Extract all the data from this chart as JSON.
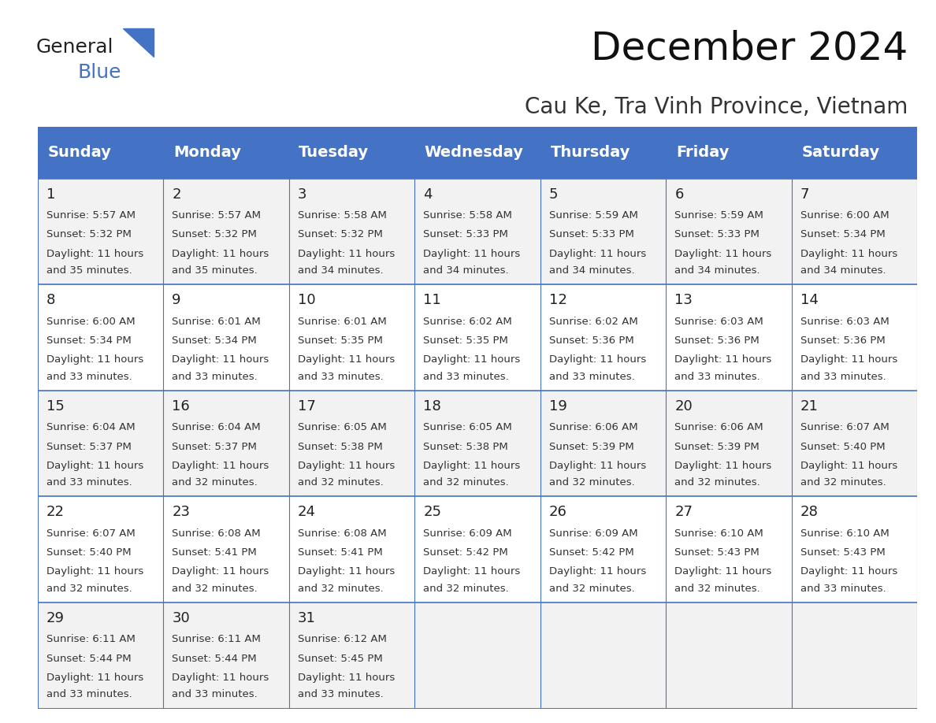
{
  "title": "December 2024",
  "subtitle": "Cau Ke, Tra Vinh Province, Vietnam",
  "header_color": "#4472C4",
  "header_text_color": "#FFFFFF",
  "day_names": [
    "Sunday",
    "Monday",
    "Tuesday",
    "Wednesday",
    "Thursday",
    "Friday",
    "Saturday"
  ],
  "cell_bg_even": "#F2F2F2",
  "cell_bg_odd": "#FFFFFF",
  "grid_color": "#4472C4",
  "title_fontsize": 36,
  "subtitle_fontsize": 20,
  "header_fontsize": 14,
  "cell_fontsize": 9.5,
  "day_num_fontsize": 13,
  "logo_text1": "General",
  "logo_text2": "Blue",
  "logo_color1": "#222222",
  "logo_color2": "#4472C4",
  "triangle_color": "#4472C4",
  "weeks": [
    [
      {
        "day": 1,
        "sunrise": "5:57 AM",
        "sunset": "5:32 PM",
        "daylight": "11 hours and 35 minutes."
      },
      {
        "day": 2,
        "sunrise": "5:57 AM",
        "sunset": "5:32 PM",
        "daylight": "11 hours and 35 minutes."
      },
      {
        "day": 3,
        "sunrise": "5:58 AM",
        "sunset": "5:32 PM",
        "daylight": "11 hours and 34 minutes."
      },
      {
        "day": 4,
        "sunrise": "5:58 AM",
        "sunset": "5:33 PM",
        "daylight": "11 hours and 34 minutes."
      },
      {
        "day": 5,
        "sunrise": "5:59 AM",
        "sunset": "5:33 PM",
        "daylight": "11 hours and 34 minutes."
      },
      {
        "day": 6,
        "sunrise": "5:59 AM",
        "sunset": "5:33 PM",
        "daylight": "11 hours and 34 minutes."
      },
      {
        "day": 7,
        "sunrise": "6:00 AM",
        "sunset": "5:34 PM",
        "daylight": "11 hours and 34 minutes."
      }
    ],
    [
      {
        "day": 8,
        "sunrise": "6:00 AM",
        "sunset": "5:34 PM",
        "daylight": "11 hours and 33 minutes."
      },
      {
        "day": 9,
        "sunrise": "6:01 AM",
        "sunset": "5:34 PM",
        "daylight": "11 hours and 33 minutes."
      },
      {
        "day": 10,
        "sunrise": "6:01 AM",
        "sunset": "5:35 PM",
        "daylight": "11 hours and 33 minutes."
      },
      {
        "day": 11,
        "sunrise": "6:02 AM",
        "sunset": "5:35 PM",
        "daylight": "11 hours and 33 minutes."
      },
      {
        "day": 12,
        "sunrise": "6:02 AM",
        "sunset": "5:36 PM",
        "daylight": "11 hours and 33 minutes."
      },
      {
        "day": 13,
        "sunrise": "6:03 AM",
        "sunset": "5:36 PM",
        "daylight": "11 hours and 33 minutes."
      },
      {
        "day": 14,
        "sunrise": "6:03 AM",
        "sunset": "5:36 PM",
        "daylight": "11 hours and 33 minutes."
      }
    ],
    [
      {
        "day": 15,
        "sunrise": "6:04 AM",
        "sunset": "5:37 PM",
        "daylight": "11 hours and 33 minutes."
      },
      {
        "day": 16,
        "sunrise": "6:04 AM",
        "sunset": "5:37 PM",
        "daylight": "11 hours and 32 minutes."
      },
      {
        "day": 17,
        "sunrise": "6:05 AM",
        "sunset": "5:38 PM",
        "daylight": "11 hours and 32 minutes."
      },
      {
        "day": 18,
        "sunrise": "6:05 AM",
        "sunset": "5:38 PM",
        "daylight": "11 hours and 32 minutes."
      },
      {
        "day": 19,
        "sunrise": "6:06 AM",
        "sunset": "5:39 PM",
        "daylight": "11 hours and 32 minutes."
      },
      {
        "day": 20,
        "sunrise": "6:06 AM",
        "sunset": "5:39 PM",
        "daylight": "11 hours and 32 minutes."
      },
      {
        "day": 21,
        "sunrise": "6:07 AM",
        "sunset": "5:40 PM",
        "daylight": "11 hours and 32 minutes."
      }
    ],
    [
      {
        "day": 22,
        "sunrise": "6:07 AM",
        "sunset": "5:40 PM",
        "daylight": "11 hours and 32 minutes."
      },
      {
        "day": 23,
        "sunrise": "6:08 AM",
        "sunset": "5:41 PM",
        "daylight": "11 hours and 32 minutes."
      },
      {
        "day": 24,
        "sunrise": "6:08 AM",
        "sunset": "5:41 PM",
        "daylight": "11 hours and 32 minutes."
      },
      {
        "day": 25,
        "sunrise": "6:09 AM",
        "sunset": "5:42 PM",
        "daylight": "11 hours and 32 minutes."
      },
      {
        "day": 26,
        "sunrise": "6:09 AM",
        "sunset": "5:42 PM",
        "daylight": "11 hours and 32 minutes."
      },
      {
        "day": 27,
        "sunrise": "6:10 AM",
        "sunset": "5:43 PM",
        "daylight": "11 hours and 32 minutes."
      },
      {
        "day": 28,
        "sunrise": "6:10 AM",
        "sunset": "5:43 PM",
        "daylight": "11 hours and 33 minutes."
      }
    ],
    [
      {
        "day": 29,
        "sunrise": "6:11 AM",
        "sunset": "5:44 PM",
        "daylight": "11 hours and 33 minutes."
      },
      {
        "day": 30,
        "sunrise": "6:11 AM",
        "sunset": "5:44 PM",
        "daylight": "11 hours and 33 minutes."
      },
      {
        "day": 31,
        "sunrise": "6:12 AM",
        "sunset": "5:45 PM",
        "daylight": "11 hours and 33 minutes."
      },
      null,
      null,
      null,
      null
    ]
  ]
}
